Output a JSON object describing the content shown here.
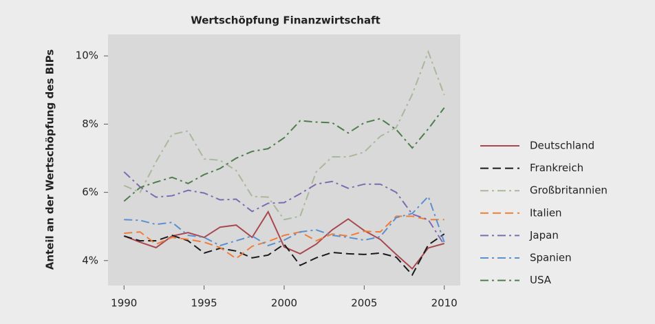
{
  "chart_data": {
    "type": "line",
    "title": "Wertschöpfung Finanzwirtschaft",
    "y_label": "Anteil an der Wertschöpfung des BIPs",
    "x": [
      1990,
      1991,
      1992,
      1993,
      1994,
      1995,
      1996,
      1997,
      1998,
      1999,
      2000,
      2001,
      2002,
      2003,
      2004,
      2005,
      2006,
      2007,
      2008,
      2009,
      2010
    ],
    "xlim": [
      1989,
      2011
    ],
    "xticks": [
      1990,
      1995,
      2000,
      2005,
      2010
    ],
    "ylim": [
      3.27,
      10.63
    ],
    "yticks": [
      {
        "value": 4,
        "label": "4%"
      },
      {
        "value": 6,
        "label": "6%"
      },
      {
        "value": 8,
        "label": "8%"
      },
      {
        "value": 10,
        "label": "10%"
      }
    ],
    "grid": false,
    "legend": "right",
    "series": [
      {
        "name": "Deutschland",
        "color": "#a8474f",
        "dash": "solid",
        "values": [
          4.72,
          4.54,
          4.38,
          4.72,
          4.82,
          4.68,
          4.98,
          5.04,
          4.68,
          5.43,
          4.4,
          4.2,
          4.48,
          4.9,
          5.22,
          4.88,
          4.62,
          4.18,
          3.76,
          4.37,
          4.5
        ]
      },
      {
        "name": "Frankreich",
        "color": "#1a1a1a",
        "dash": "dash",
        "values": [
          4.72,
          4.58,
          4.58,
          4.74,
          4.58,
          4.22,
          4.36,
          4.28,
          4.08,
          4.16,
          4.48,
          3.86,
          4.08,
          4.24,
          4.2,
          4.18,
          4.22,
          4.1,
          3.58,
          4.46,
          4.78
        ]
      },
      {
        "name": "Großbritannien",
        "color": "#a9b89c",
        "dash": "dashdot",
        "values": [
          6.2,
          6.0,
          6.9,
          7.7,
          7.8,
          6.98,
          6.94,
          6.64,
          5.88,
          5.86,
          5.2,
          5.3,
          6.6,
          7.04,
          7.04,
          7.18,
          7.64,
          7.9,
          8.87,
          10.12,
          8.85
        ]
      },
      {
        "name": "Italien",
        "color": "#ef7d3a",
        "dash": "dash",
        "values": [
          4.8,
          4.84,
          4.48,
          4.68,
          4.62,
          4.54,
          4.38,
          4.06,
          4.42,
          4.56,
          4.74,
          4.84,
          4.58,
          4.78,
          4.72,
          4.86,
          4.84,
          5.3,
          5.3,
          5.2,
          5.2
        ]
      },
      {
        "name": "Japan",
        "color": "#7d6bb0",
        "dash": "dashdot",
        "values": [
          6.6,
          6.16,
          5.86,
          5.9,
          6.06,
          5.98,
          5.78,
          5.8,
          5.44,
          5.68,
          5.7,
          5.96,
          6.24,
          6.32,
          6.12,
          6.24,
          6.24,
          6.0,
          5.36,
          5.2,
          4.46
        ]
      },
      {
        "name": "Spanien",
        "color": "#5b8fd0",
        "dash": "dashdot",
        "values": [
          5.2,
          5.18,
          5.06,
          5.12,
          4.74,
          4.68,
          4.44,
          4.58,
          4.72,
          4.44,
          4.6,
          4.84,
          4.9,
          4.74,
          4.68,
          4.6,
          4.7,
          5.26,
          5.38,
          5.88,
          4.54
        ]
      },
      {
        "name": "USA",
        "color": "#4e7d4e",
        "dash": "dashdot",
        "values": [
          5.74,
          6.14,
          6.3,
          6.44,
          6.26,
          6.52,
          6.7,
          7.0,
          7.2,
          7.28,
          7.6,
          8.1,
          8.06,
          8.04,
          7.74,
          8.04,
          8.16,
          7.84,
          7.3,
          7.86,
          8.48
        ]
      }
    ]
  }
}
